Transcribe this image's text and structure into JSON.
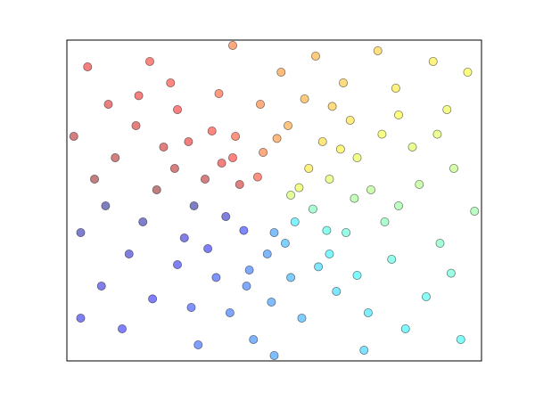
{
  "chart_data": {
    "type": "scatter",
    "colormap": "jet",
    "marker_alpha": 0.5,
    "edge_color": "#000000",
    "xlim": [
      -1.5,
      1.5
    ],
    "ylim": [
      -1.5,
      1.5
    ],
    "xticks": [],
    "yticks": [],
    "grid": false,
    "x": [
      0.12,
      -0.3,
      0.8,
      -1.2,
      0.5,
      -0.7,
      1.3,
      0.2,
      -0.1,
      0.9,
      -1.4,
      0.4,
      -0.5,
      1.1,
      -0.9,
      0,
      0.6,
      -0.2,
      1.4,
      -1.1,
      0.25,
      -0.35,
      0.7,
      -0.8,
      0.1,
      -0.05,
      0.45,
      -0.6,
      1,
      -1.3,
      0.3,
      -0.4,
      0.85,
      -0.95,
      0.15,
      -0.25,
      1.2,
      -1,
      0.55,
      -0.65,
      0.05,
      -0.15,
      0.95,
      -1.25,
      0.35,
      -0.45,
      1.25,
      -0.75,
      0.65,
      -0.55,
      0.18,
      -0.12,
      0.28,
      -0.22,
      0.4,
      -0.38,
      0.08,
      -0.08,
      0.52,
      -0.48,
      1.45,
      -1.45,
      0.75,
      -0.3,
      1.15,
      -1.35,
      1.35,
      -1.4,
      0,
      0.9,
      -0.85,
      0.6,
      -0.7,
      0.22,
      -0.18,
      1.05,
      -1.05,
      0.42,
      -0.32,
      0.78,
      -0.62,
      0.32,
      -0.42,
      1.18,
      -1.15,
      0.58,
      -0.58,
      0.02,
      -0.02,
      0.88,
      -1.22,
      0.68,
      -0.88,
      1.28,
      -0.98,
      0.12,
      -0.72,
      0.48,
      -0.28,
      0.38
    ],
    "values": [
      0.05,
      0.4,
      -0.2,
      0.9,
      1.1,
      -0.6,
      0.3,
      -1.1,
      0.9,
      0.8,
      -0.3,
      -0.5,
      0.2,
      -0.9,
      1.3,
      -0.3,
      0.4,
      -0.8,
      1.2,
      -1.2,
      0.3,
      -0.15,
      0.1,
      0.5,
      0.7,
      -0.5,
      -0.85,
      -1,
      0.5,
      0.2,
      1.35,
      1,
      -0.55,
      -0.2,
      -0.2,
      0.15,
      -0.4,
      0.7,
      0.75,
      -0.35,
      1.2,
      -1.3,
      -1.2,
      -0.8,
      0.55,
      0.65,
      0.85,
      1.1,
      -1.4,
      -1.35,
      0.12,
      0.22,
      -0.08,
      -0.28,
      0.2,
      0.35,
      -0.4,
      0.45,
      -0.3,
      -0.45,
      -0.1,
      0.6,
      1.4,
      1.45,
      1.3,
      1.25,
      -1.3,
      -1.1,
      -1.45,
      -0.05,
      0.1,
      -0.7,
      0.85,
      0.95,
      -0.65,
      0.15,
      -0.5,
      0.88,
      -1.05,
      0.62,
      0.55,
      -0.62,
      -0.72,
      0.62,
      0.4,
      0.02,
      -0.05,
      0.58,
      -0.95,
      1.05,
      -0.05,
      -1.05,
      -0.92,
      -0.68,
      0.98,
      -0.72,
      0.3,
      0.48,
      0.6,
      -0.28
    ]
  }
}
